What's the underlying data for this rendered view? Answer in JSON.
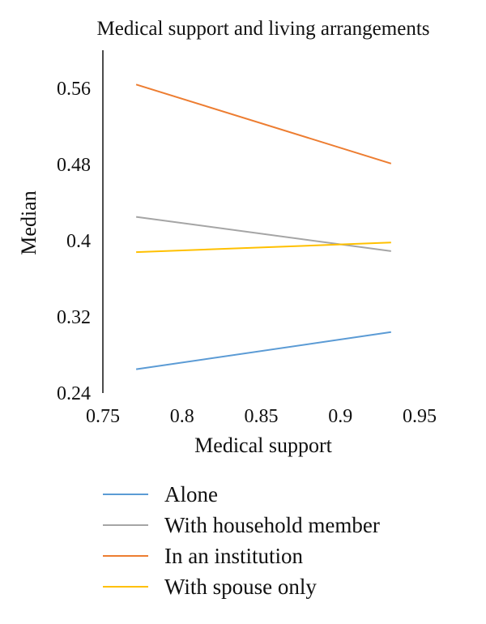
{
  "chart_data": {
    "type": "line",
    "title": "Medical support and living arrangements",
    "xlabel": "Medical support",
    "ylabel": "Median",
    "xlim": [
      0.75,
      0.95
    ],
    "ylim": [
      0.24,
      0.6
    ],
    "xticks": [
      0.75,
      0.8,
      0.85,
      0.9,
      0.95
    ],
    "yticks": [
      0.24,
      0.32,
      0.4,
      0.48,
      0.56
    ],
    "xtick_labels": [
      "0.75",
      "0.8",
      "0.85",
      "0.9",
      "0.95"
    ],
    "ytick_labels": [
      "0.24",
      "0.32",
      "0.4",
      "0.48",
      "0.56"
    ],
    "grid": false,
    "legend_position": "bottom",
    "series": [
      {
        "name": "Alone",
        "color": "#5b9bd5",
        "x": [
          0.771,
          0.932
        ],
        "y": [
          0.265,
          0.304
        ]
      },
      {
        "name": "With household member",
        "color": "#a5a5a5",
        "x": [
          0.771,
          0.932
        ],
        "y": [
          0.425,
          0.389
        ]
      },
      {
        "name": "In an institution",
        "color": "#ed7d31",
        "x": [
          0.771,
          0.932
        ],
        "y": [
          0.564,
          0.481
        ]
      },
      {
        "name": "With spouse only",
        "color": "#ffc000",
        "x": [
          0.771,
          0.932
        ],
        "y": [
          0.388,
          0.398
        ]
      }
    ]
  }
}
